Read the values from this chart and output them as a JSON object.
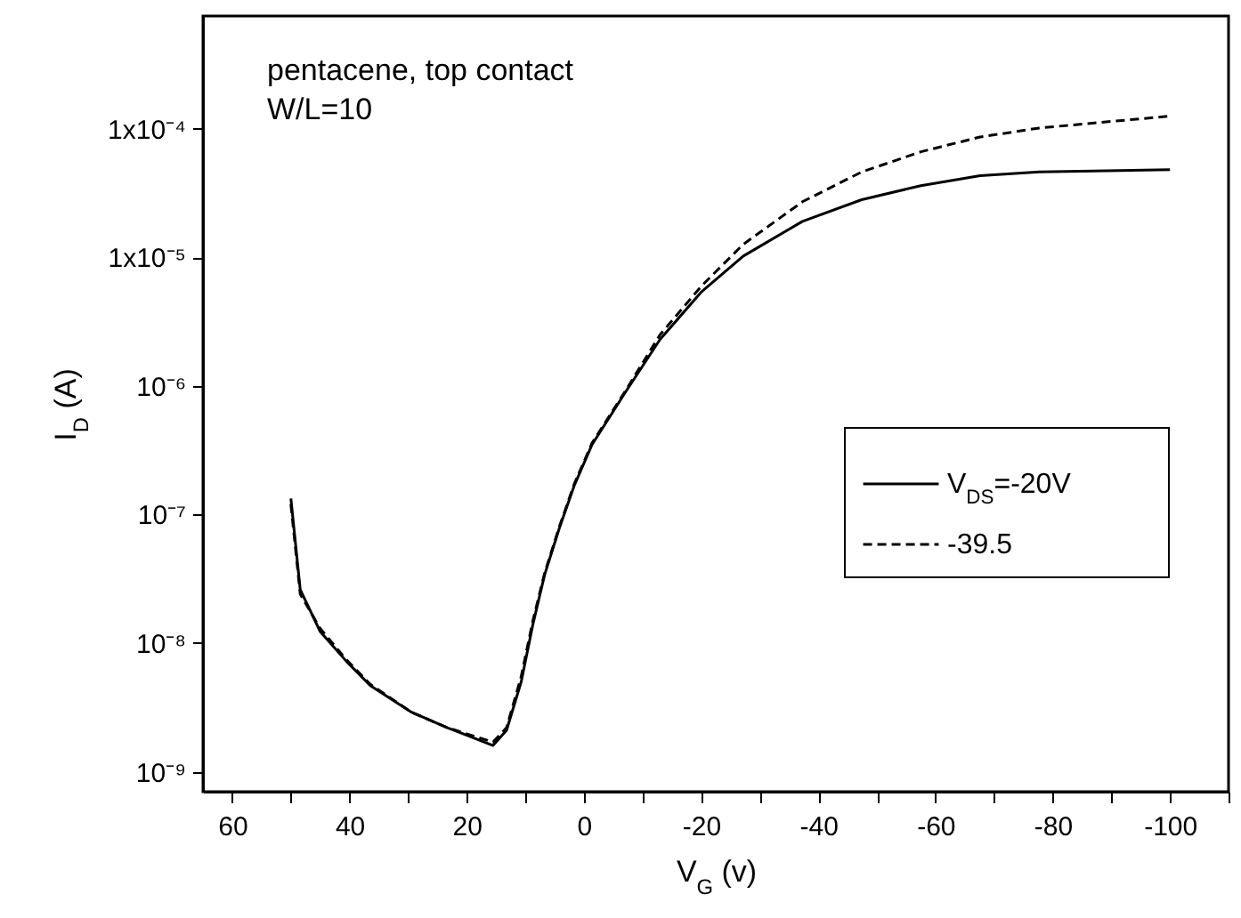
{
  "chart_data": {
    "type": "line",
    "xlabel": "V$_{G}$ (v)",
    "ylabel": "I$_{D}$ (A)",
    "annotations": [
      "pentacene, top contact",
      "W/L=10"
    ],
    "log": "y",
    "legend": "right",
    "xlim": [
      65,
      -110
    ],
    "xticks": [
      60,
      {
        "value": 50,
        "label": null
      },
      40,
      {
        "value": 30,
        "label": null
      },
      20,
      {
        "value": 10,
        "label": null
      },
      0,
      {
        "value": -10,
        "label": null
      },
      -20,
      {
        "value": -30,
        "label": null
      },
      -40,
      {
        "value": -50,
        "label": null
      },
      -60,
      {
        "value": -70,
        "label": null
      },
      -80,
      {
        "value": -90,
        "label": null
      },
      -100,
      {
        "value": -110,
        "label": null
      }
    ],
    "ylim": [
      7e-10,
      0.00075
    ],
    "yticks": [
      {
        "value": 1e-09,
        "label": "10⁻⁹"
      },
      {
        "value": 1e-08,
        "label": "10⁻⁸"
      },
      {
        "value": 1e-07,
        "label": "10⁻⁷"
      },
      {
        "value": 1e-06,
        "label": "10⁻⁶"
      },
      {
        "value": 1e-05,
        "label": "1x10⁻⁵"
      },
      {
        "value": 0.0001,
        "label": "1x10⁻⁴"
      }
    ],
    "series": [
      {
        "name": "V$_{DS}$=-20V",
        "color": "#000000",
        "line_style": "solid",
        "x": [
          50,
          48.4,
          45,
          40.5,
          36.5,
          29.4,
          23.3,
          15.5,
          13.2,
          10.7,
          8.7,
          6.7,
          4.2,
          1.6,
          -1.4,
          -7,
          -13,
          -20.1,
          -27.2,
          -37.3,
          -47.4,
          -57.5,
          -67.6,
          -77.7,
          -100
        ],
        "values": [
          1.33e-07,
          2.6e-08,
          1.23e-08,
          7.2e-09,
          4.7e-09,
          2.9e-09,
          2.2e-09,
          1.6e-09,
          2.1e-09,
          5e-09,
          1.4e-08,
          3.4e-08,
          7.8e-08,
          1.7e-07,
          3.5e-07,
          8.8e-07,
          2.3e-06,
          5.4e-06,
          1.02e-05,
          1.9e-05,
          2.8e-05,
          3.6e-05,
          4.3e-05,
          4.6e-05,
          4.8e-05
        ]
      },
      {
        "name": "-39.5",
        "color": "#000000",
        "line_style": "dashed",
        "x": [
          50,
          48.4,
          45,
          40.5,
          36.5,
          29.4,
          23.3,
          15.5,
          13.2,
          10.7,
          8.7,
          6.7,
          4.2,
          1.6,
          -1.4,
          -7,
          -13,
          -20.1,
          -27.2,
          -37.3,
          -47.4,
          -57.5,
          -67.6,
          -77.7,
          -100
        ],
        "values": [
          1.2e-07,
          2.4e-08,
          1.3e-08,
          7.4e-09,
          4.8e-09,
          2.9e-09,
          2.2e-09,
          1.7e-09,
          2.2e-09,
          5.5e-09,
          1.5e-08,
          3.5e-08,
          8e-08,
          1.75e-07,
          3.6e-07,
          9e-07,
          2.5e-06,
          6e-06,
          1.26e-05,
          2.7e-05,
          4.6e-05,
          6.6e-05,
          8.6e-05,
          0.000101,
          0.000125
        ]
      }
    ]
  }
}
